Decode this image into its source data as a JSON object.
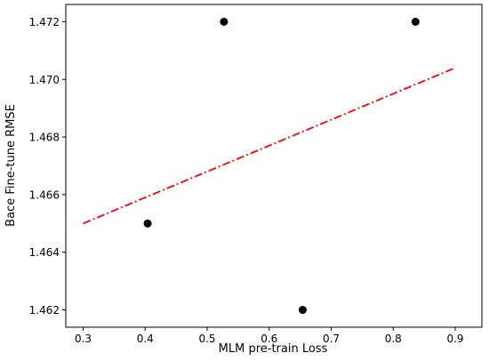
{
  "chart_data": {
    "type": "scatter",
    "title": "",
    "xlabel": "MLM pre-train Loss",
    "ylabel": "Bace Fine-tune RMSE",
    "xlim": [
      0.272,
      0.943
    ],
    "ylim": [
      1.4614,
      1.4726
    ],
    "xticks": [
      0.3,
      0.4,
      0.5,
      0.6,
      0.7,
      0.8,
      0.9
    ],
    "xtick_labels": [
      "0.3",
      "0.4",
      "0.5",
      "0.6",
      "0.7",
      "0.8",
      "0.9"
    ],
    "yticks": [
      1.462,
      1.464,
      1.466,
      1.468,
      1.47,
      1.472
    ],
    "ytick_labels": [
      "1.462",
      "1.464",
      "1.466",
      "1.468",
      "1.470",
      "1.472"
    ],
    "grid": false,
    "points": [
      {
        "x": 0.404,
        "y": 1.465
      },
      {
        "x": 0.527,
        "y": 1.472
      },
      {
        "x": 0.654,
        "y": 1.462
      },
      {
        "x": 0.836,
        "y": 1.472
      }
    ],
    "point_color": "#000000",
    "trendline": {
      "style": "dash-dot",
      "color": "#ff0000",
      "x": [
        0.3,
        0.9
      ],
      "y": [
        1.465,
        1.4704
      ]
    }
  }
}
